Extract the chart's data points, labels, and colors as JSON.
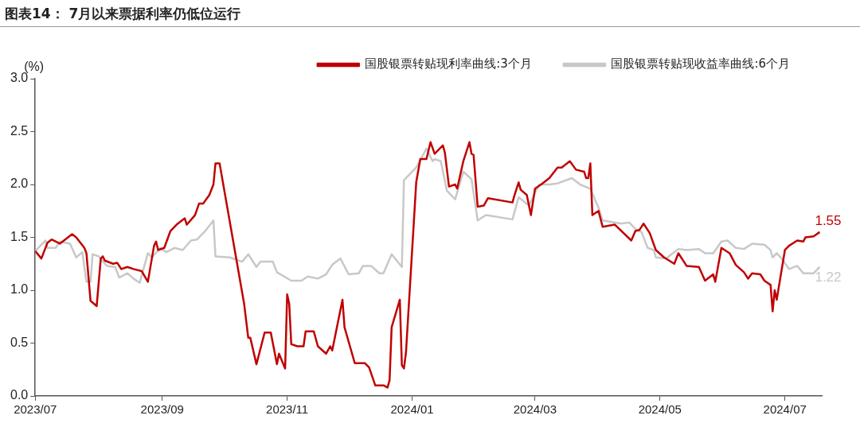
{
  "chart_data": {
    "type": "line",
    "title": "图表14： 7月以来票据利率仍低位运行",
    "ylabel": "(%)",
    "xlim": [
      "2023-07-01",
      "2024-07-19"
    ],
    "xticks": [
      {
        "value": "2023-07",
        "label": "2023/07"
      },
      {
        "value": "2023-09",
        "label": "2023/09"
      },
      {
        "value": "2023-11",
        "label": "2023/11"
      },
      {
        "value": "2024-01",
        "label": "2024/01"
      },
      {
        "value": "2024-03",
        "label": "2024/03"
      },
      {
        "value": "2024-05",
        "label": "2024/05"
      },
      {
        "value": "2024-07",
        "label": "2024/07"
      }
    ],
    "ylim": [
      0,
      3
    ],
    "yticks": [
      {
        "value": 0,
        "label": "0.0"
      },
      {
        "value": 0.5,
        "label": "0.5"
      },
      {
        "value": 1,
        "label": "1.0"
      },
      {
        "value": 1.5,
        "label": "1.5"
      },
      {
        "value": 2,
        "label": "2.0"
      },
      {
        "value": 2.5,
        "label": "2.5"
      },
      {
        "value": 3,
        "label": "3.0"
      }
    ],
    "grid": false,
    "legend": "top",
    "marker": "none",
    "line_style": "solid",
    "series": [
      {
        "name": "国股银票转贴现利率曲线:3个月",
        "color": "#c00000",
        "x": [
          "2023-07-01",
          "2023-07-04",
          "2023-07-07",
          "2023-07-09",
          "2023-07-13",
          "2023-07-17",
          "2023-07-19",
          "2023-07-21",
          "2023-07-25",
          "2023-07-26",
          "2023-07-28",
          "2023-07-31",
          "2023-08-02",
          "2023-08-03",
          "2023-08-04",
          "2023-08-08",
          "2023-08-10",
          "2023-08-12",
          "2023-08-15",
          "2023-08-18",
          "2023-08-22",
          "2023-08-25",
          "2023-08-28",
          "2023-08-29",
          "2023-08-30",
          "2023-09-02",
          "2023-09-05",
          "2023-09-08",
          "2023-09-12",
          "2023-09-13",
          "2023-09-17",
          "2023-09-19",
          "2023-09-21",
          "2023-09-24",
          "2023-09-26",
          "2023-09-27",
          "2023-09-29",
          "2023-10-11",
          "2023-10-13",
          "2023-10-14",
          "2023-10-17",
          "2023-10-21",
          "2023-10-24",
          "2023-10-25",
          "2023-10-27",
          "2023-10-28",
          "2023-10-31",
          "2023-11-01",
          "2023-11-02",
          "2023-11-03",
          "2023-11-06",
          "2023-11-09",
          "2023-11-10",
          "2023-11-14",
          "2023-11-16",
          "2023-11-20",
          "2023-11-22",
          "2023-11-23",
          "2023-11-28",
          "2023-11-29",
          "2023-12-04",
          "2023-12-09",
          "2023-12-11",
          "2023-12-14",
          "2023-12-18",
          "2023-12-20",
          "2023-12-21",
          "2023-12-22",
          "2023-12-26",
          "2023-12-27",
          "2023-12-28",
          "2023-12-29",
          "2024-01-03",
          "2024-01-05",
          "2024-01-08",
          "2024-01-10",
          "2024-01-12",
          "2024-01-16",
          "2024-01-17",
          "2024-01-19",
          "2024-01-22",
          "2024-01-23",
          "2024-01-26",
          "2024-01-29",
          "2024-01-30",
          "2024-01-31",
          "2024-02-02",
          "2024-02-05",
          "2024-02-07",
          "2024-02-19",
          "2024-02-20",
          "2024-02-22",
          "2024-02-23",
          "2024-02-26",
          "2024-02-28",
          "2024-03-01",
          "2024-03-04",
          "2024-03-08",
          "2024-03-12",
          "2024-03-14",
          "2024-03-18",
          "2024-03-21",
          "2024-03-25",
          "2024-03-26",
          "2024-03-27",
          "2024-03-28",
          "2024-03-29",
          "2024-04-01",
          "2024-04-03",
          "2024-04-09",
          "2024-04-17",
          "2024-04-19",
          "2024-04-21",
          "2024-04-23",
          "2024-04-26",
          "2024-04-29",
          "2024-05-03",
          "2024-05-08",
          "2024-05-10",
          "2024-05-14",
          "2024-05-20",
          "2024-05-23",
          "2024-05-27",
          "2024-05-28",
          "2024-05-31",
          "2024-06-04",
          "2024-06-07",
          "2024-06-11",
          "2024-06-13",
          "2024-06-15",
          "2024-06-19",
          "2024-06-21",
          "2024-06-24",
          "2024-06-25",
          "2024-06-26",
          "2024-06-27",
          "2024-07-01",
          "2024-07-03",
          "2024-07-07",
          "2024-07-10",
          "2024-07-11",
          "2024-07-15",
          "2024-07-18"
        ],
        "values": [
          1.37,
          1.3,
          1.45,
          1.48,
          1.44,
          1.5,
          1.53,
          1.5,
          1.4,
          1.35,
          0.9,
          0.85,
          1.3,
          1.32,
          1.28,
          1.25,
          1.26,
          1.2,
          1.22,
          1.2,
          1.18,
          1.08,
          1.42,
          1.46,
          1.38,
          1.4,
          1.56,
          1.62,
          1.68,
          1.62,
          1.71,
          1.82,
          1.82,
          1.9,
          2.0,
          2.2,
          2.2,
          0.87,
          0.55,
          0.55,
          0.3,
          0.6,
          0.6,
          0.5,
          0.3,
          0.4,
          0.26,
          0.96,
          0.87,
          0.49,
          0.47,
          0.47,
          0.61,
          0.61,
          0.47,
          0.4,
          0.47,
          0.43,
          0.91,
          0.65,
          0.31,
          0.31,
          0.27,
          0.1,
          0.1,
          0.08,
          0.15,
          0.65,
          0.91,
          0.29,
          0.26,
          0.41,
          2.02,
          2.24,
          2.24,
          2.4,
          2.29,
          2.37,
          2.3,
          1.98,
          2.0,
          1.96,
          2.22,
          2.4,
          2.29,
          2.28,
          1.79,
          1.8,
          1.87,
          1.83,
          1.9,
          2.02,
          1.95,
          1.9,
          1.71,
          1.96,
          2.0,
          2.06,
          2.16,
          2.16,
          2.22,
          2.14,
          2.12,
          2.06,
          2.06,
          2.2,
          1.71,
          1.75,
          1.6,
          1.62,
          1.47,
          1.56,
          1.57,
          1.63,
          1.54,
          1.38,
          1.31,
          1.25,
          1.35,
          1.23,
          1.22,
          1.09,
          1.15,
          1.08,
          1.4,
          1.35,
          1.24,
          1.17,
          1.11,
          1.16,
          1.15,
          1.09,
          1.05,
          0.8,
          1.0,
          0.91,
          1.38,
          1.42,
          1.47,
          1.46,
          1.5,
          1.51,
          1.55
        ]
      },
      {
        "name": "国股银票转贴现收益率曲线:6个月",
        "color": "#c8c8c8",
        "x": [
          "2023-07-01",
          "2023-07-06",
          "2023-07-07",
          "2023-07-11",
          "2023-07-13",
          "2023-07-18",
          "2023-07-21",
          "2023-07-24",
          "2023-07-26",
          "2023-07-28",
          "2023-07-29",
          "2023-08-01",
          "2023-08-05",
          "2023-08-09",
          "2023-08-11",
          "2023-08-15",
          "2023-08-18",
          "2023-08-21",
          "2023-08-25",
          "2023-08-27",
          "2023-08-31",
          "2023-09-03",
          "2023-09-07",
          "2023-09-11",
          "2023-09-15",
          "2023-09-18",
          "2023-09-22",
          "2023-09-26",
          "2023-09-27",
          "2023-10-04",
          "2023-10-10",
          "2023-10-13",
          "2023-10-17",
          "2023-10-19",
          "2023-10-25",
          "2023-10-27",
          "2023-11-03",
          "2023-11-08",
          "2023-11-11",
          "2023-11-16",
          "2023-11-20",
          "2023-11-23",
          "2023-11-27",
          "2023-12-01",
          "2023-12-06",
          "2023-12-08",
          "2023-12-12",
          "2023-12-16",
          "2023-12-18",
          "2023-12-22",
          "2023-12-27",
          "2023-12-28",
          "2024-01-03",
          "2024-01-08",
          "2024-01-11",
          "2024-01-12",
          "2024-01-15",
          "2024-01-18",
          "2024-01-22",
          "2024-01-26",
          "2024-01-30",
          "2024-02-02",
          "2024-02-06",
          "2024-02-19",
          "2024-02-22",
          "2024-02-27",
          "2024-03-03",
          "2024-03-08",
          "2024-03-12",
          "2024-03-19",
          "2024-03-23",
          "2024-03-28",
          "2024-04-01",
          "2024-04-03",
          "2024-04-12",
          "2024-04-16",
          "2024-04-19",
          "2024-04-22",
          "2024-04-25",
          "2024-04-28",
          "2024-04-29",
          "2024-05-04",
          "2024-05-10",
          "2024-05-14",
          "2024-05-20",
          "2024-05-23",
          "2024-05-27",
          "2024-05-31",
          "2024-06-03",
          "2024-06-07",
          "2024-06-11",
          "2024-06-15",
          "2024-06-21",
          "2024-06-24",
          "2024-06-25",
          "2024-06-27",
          "2024-06-29",
          "2024-07-03",
          "2024-07-07",
          "2024-07-10",
          "2024-07-15",
          "2024-07-18"
        ],
        "values": [
          1.37,
          1.47,
          1.4,
          1.4,
          1.46,
          1.44,
          1.31,
          1.36,
          1.08,
          1.08,
          1.34,
          1.32,
          1.23,
          1.22,
          1.12,
          1.16,
          1.11,
          1.07,
          1.35,
          1.31,
          1.4,
          1.36,
          1.4,
          1.38,
          1.47,
          1.48,
          1.56,
          1.66,
          1.32,
          1.31,
          1.27,
          1.34,
          1.22,
          1.27,
          1.27,
          1.17,
          1.09,
          1.09,
          1.13,
          1.11,
          1.15,
          1.24,
          1.3,
          1.15,
          1.16,
          1.23,
          1.23,
          1.16,
          1.16,
          1.34,
          1.22,
          2.04,
          2.16,
          2.34,
          2.22,
          2.24,
          2.22,
          1.94,
          1.86,
          2.12,
          2.05,
          1.66,
          1.71,
          1.67,
          1.88,
          1.8,
          2.0,
          2.0,
          2.01,
          2.06,
          2.0,
          1.96,
          1.78,
          1.66,
          1.63,
          1.64,
          1.58,
          1.55,
          1.4,
          1.38,
          1.31,
          1.3,
          1.39,
          1.38,
          1.39,
          1.35,
          1.35,
          1.46,
          1.47,
          1.4,
          1.39,
          1.44,
          1.43,
          1.38,
          1.31,
          1.35,
          1.31,
          1.2,
          1.23,
          1.16,
          1.16,
          1.22
        ]
      }
    ],
    "annotations": [
      {
        "text": "1.55",
        "x": "2024-07-18",
        "y": 1.55
      },
      {
        "text": "1.22",
        "x": "2024-07-18",
        "y": 1.22
      }
    ]
  }
}
